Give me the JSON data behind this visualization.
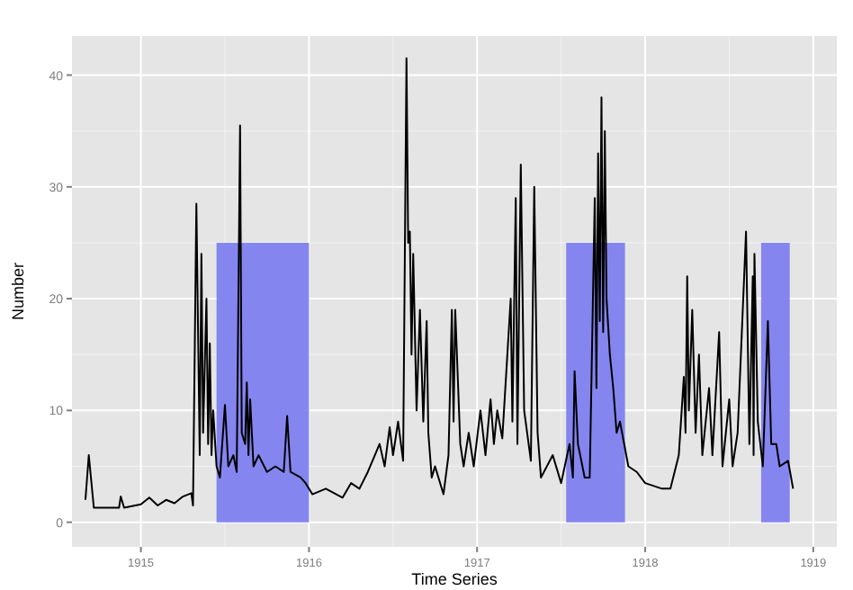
{
  "chart_data": {
    "type": "line",
    "xlabel": "Time Series",
    "ylabel": "Number",
    "xlim": [
      1914.59,
      1919.14
    ],
    "ylim": [
      -2.2,
      43.5
    ],
    "xticks": [
      1915,
      1916,
      1917,
      1918,
      1919
    ],
    "yticks": [
      0,
      10,
      20,
      30,
      40
    ],
    "grid": true,
    "series": [
      {
        "type": "area",
        "color": "#8080f0",
        "x": [
          1915.45,
          1916.0
        ],
        "values": [
          25,
          25
        ]
      },
      {
        "type": "area",
        "color": "#8080f0",
        "x": [
          1917.53,
          1917.88
        ],
        "values": [
          25,
          25
        ]
      },
      {
        "type": "area",
        "color": "#8080f0",
        "x": [
          1918.69,
          1918.86
        ],
        "values": [
          25,
          25
        ]
      },
      {
        "type": "line",
        "color": "#000000",
        "x": [
          1914.67,
          1914.69,
          1914.72,
          1914.87,
          1914.88,
          1914.9,
          1915.0,
          1915.05,
          1915.1,
          1915.15,
          1915.2,
          1915.25,
          1915.3,
          1915.31,
          1915.33,
          1915.35,
          1915.36,
          1915.37,
          1915.39,
          1915.4,
          1915.41,
          1915.42,
          1915.43,
          1915.45,
          1915.47,
          1915.5,
          1915.52,
          1915.55,
          1915.57,
          1915.59,
          1915.6,
          1915.62,
          1915.63,
          1915.64,
          1915.65,
          1915.67,
          1915.7,
          1915.75,
          1915.8,
          1915.85,
          1915.87,
          1915.89,
          1915.95,
          1915.98,
          1916.02,
          1916.1,
          1916.2,
          1916.25,
          1916.3,
          1916.35,
          1916.42,
          1916.45,
          1916.48,
          1916.5,
          1916.53,
          1916.56,
          1916.58,
          1916.59,
          1916.6,
          1916.61,
          1916.62,
          1916.64,
          1916.66,
          1916.68,
          1916.7,
          1916.71,
          1916.72,
          1916.73,
          1916.75,
          1916.8,
          1916.83,
          1916.85,
          1916.86,
          1916.87,
          1916.9,
          1916.92,
          1916.95,
          1916.98,
          1917.02,
          1917.05,
          1917.08,
          1917.1,
          1917.12,
          1917.15,
          1917.2,
          1917.21,
          1917.23,
          1917.24,
          1917.26,
          1917.28,
          1917.32,
          1917.34,
          1917.36,
          1917.38,
          1917.45,
          1917.5,
          1917.55,
          1917.57,
          1917.58,
          1917.6,
          1917.62,
          1917.64,
          1917.67,
          1917.7,
          1917.71,
          1917.72,
          1917.73,
          1917.74,
          1917.75,
          1917.76,
          1917.77,
          1917.79,
          1917.81,
          1917.83,
          1917.85,
          1917.9,
          1917.95,
          1918.0,
          1918.1,
          1918.15,
          1918.2,
          1918.23,
          1918.24,
          1918.25,
          1918.26,
          1918.28,
          1918.3,
          1918.32,
          1918.34,
          1918.38,
          1918.4,
          1918.44,
          1918.46,
          1918.5,
          1918.52,
          1918.55,
          1918.6,
          1918.62,
          1918.64,
          1918.645,
          1918.65,
          1918.67,
          1918.7,
          1918.73,
          1918.75,
          1918.78,
          1918.8,
          1918.85,
          1918.88
        ],
        "values": [
          2,
          6,
          1.3,
          1.3,
          2.3,
          1.3,
          1.6,
          2.2,
          1.5,
          2,
          1.7,
          2.3,
          2.6,
          1.5,
          28.5,
          6,
          24,
          8,
          20,
          7,
          16,
          6,
          10,
          5,
          4,
          10.5,
          5,
          6,
          4.5,
          35.5,
          8,
          7,
          12.5,
          6,
          11,
          5,
          6,
          4.5,
          5,
          4.5,
          9.5,
          4.5,
          4,
          3.5,
          2.5,
          3,
          2.2,
          3.5,
          3,
          4.5,
          7,
          5,
          8.5,
          6,
          9,
          5.5,
          41.5,
          25,
          26,
          15,
          24,
          10,
          19,
          9,
          18,
          8,
          6,
          4,
          5,
          2.5,
          6,
          19,
          9,
          19,
          7,
          5,
          8,
          5,
          10,
          6,
          11,
          7,
          10,
          7.5,
          20,
          9,
          29,
          7,
          32,
          10,
          5.5,
          30,
          8,
          4,
          6,
          3.5,
          7,
          4,
          13.5,
          7,
          5.5,
          4,
          4,
          29,
          12,
          33,
          18,
          38,
          17,
          35,
          20,
          15,
          12,
          8,
          9,
          5,
          4.5,
          3.5,
          3,
          3,
          6,
          13,
          8,
          22,
          10,
          19,
          8,
          15,
          6,
          12,
          6,
          17,
          5,
          11,
          5,
          8,
          26,
          7,
          22,
          6,
          24,
          9,
          5,
          18,
          7,
          7,
          5,
          5.5,
          3
        ]
      }
    ]
  }
}
